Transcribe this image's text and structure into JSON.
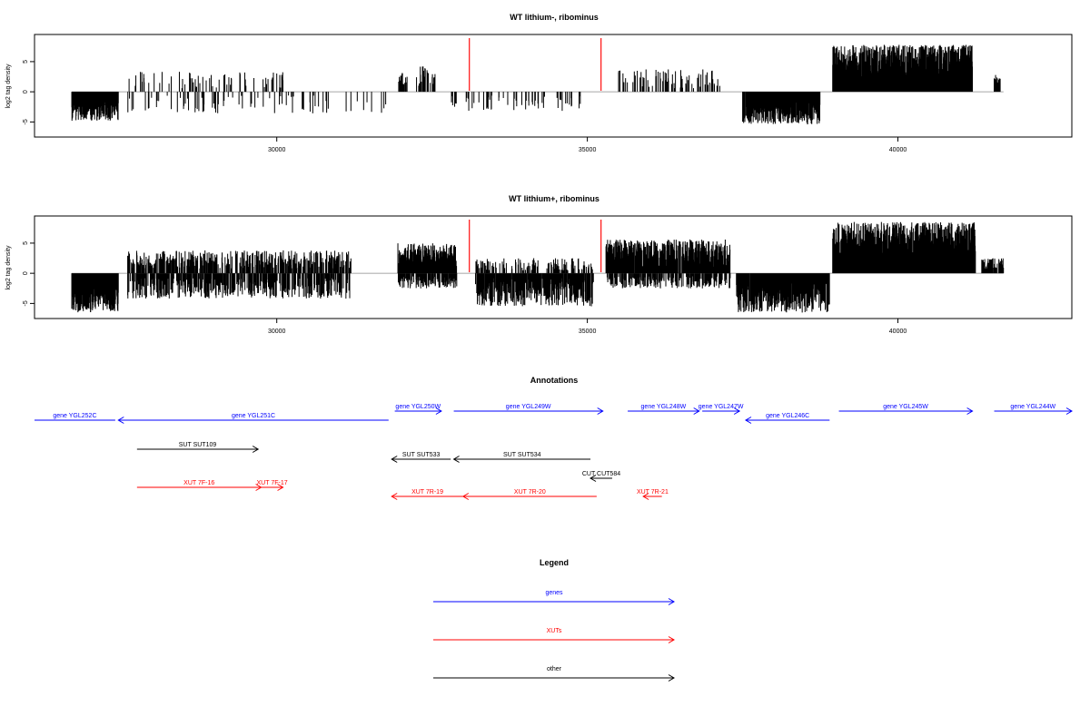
{
  "colors": {
    "axis": "#000000",
    "bars": "#000000",
    "marker": "#ff2020",
    "genes": "#0000ff",
    "xuts": "#ff0000",
    "other": "#000000"
  },
  "chart_data": [
    {
      "type": "bar",
      "title": "WT lithium-, ribominus",
      "ylabel": "log2 tag density",
      "xlim": [
        26100,
        42800
      ],
      "ylim": [
        -7.5,
        9.5
      ],
      "x_ticks": [
        30000,
        35000,
        40000
      ],
      "y_ticks": [
        -5,
        0,
        5
      ],
      "grid": false,
      "markers_x": [
        33100,
        35220
      ],
      "segments": [
        {
          "x0": 26700,
          "x1": 27450,
          "sign": -1,
          "min": 1.6,
          "max": 4.8,
          "density": 0.75
        },
        {
          "x0": 27600,
          "x1": 30100,
          "sign": 1,
          "min": 0.6,
          "max": 3.4,
          "density": 0.07
        },
        {
          "x0": 27600,
          "x1": 31800,
          "sign": -1,
          "min": 0.6,
          "max": 3.6,
          "density": 0.07
        },
        {
          "x0": 31960,
          "x1": 32100,
          "sign": 1,
          "min": 1.0,
          "max": 3.2,
          "density": 0.5
        },
        {
          "x0": 32250,
          "x1": 32550,
          "sign": 1,
          "min": 1.0,
          "max": 4.3,
          "density": 0.3
        },
        {
          "x0": 32800,
          "x1": 34900,
          "sign": -1,
          "min": 0.6,
          "max": 3.2,
          "density": 0.09
        },
        {
          "x0": 35500,
          "x1": 37150,
          "sign": 1,
          "min": 0.6,
          "max": 3.8,
          "density": 0.14
        },
        {
          "x0": 37500,
          "x1": 38750,
          "sign": -1,
          "min": 1.5,
          "max": 5.4,
          "density": 0.75
        },
        {
          "x0": 38950,
          "x1": 41200,
          "sign": 1,
          "min": 2.2,
          "max": 7.8,
          "density": 0.95
        },
        {
          "x0": 41550,
          "x1": 41650,
          "sign": 1,
          "min": 1.5,
          "max": 2.8,
          "density": 0.5
        }
      ]
    },
    {
      "type": "bar",
      "title": "WT lithium+, ribominus",
      "ylabel": "log2 tag density",
      "xlim": [
        26100,
        42800
      ],
      "ylim": [
        -7.5,
        9.5
      ],
      "x_ticks": [
        30000,
        35000,
        40000
      ],
      "y_ticks": [
        -5,
        0,
        5
      ],
      "grid": false,
      "markers_x": [
        33100,
        35220
      ],
      "segments": [
        {
          "x0": 26700,
          "x1": 27450,
          "sign": -1,
          "min": 2.5,
          "max": 6.5,
          "density": 0.9
        },
        {
          "x0": 27600,
          "x1": 31200,
          "sign": 1,
          "min": 0.8,
          "max": 3.8,
          "density": 0.35
        },
        {
          "x0": 27600,
          "x1": 31200,
          "sign": -1,
          "min": 0.8,
          "max": 4.2,
          "density": 0.35
        },
        {
          "x0": 31950,
          "x1": 32900,
          "sign": 1,
          "min": 1.2,
          "max": 5.0,
          "density": 0.7
        },
        {
          "x0": 31950,
          "x1": 32900,
          "sign": -1,
          "min": 0.5,
          "max": 2.5,
          "density": 0.4
        },
        {
          "x0": 33200,
          "x1": 35100,
          "sign": -1,
          "min": 0.8,
          "max": 5.5,
          "density": 0.55
        },
        {
          "x0": 33200,
          "x1": 35100,
          "sign": 1,
          "min": 0.5,
          "max": 2.5,
          "density": 0.2
        },
        {
          "x0": 35300,
          "x1": 37300,
          "sign": 1,
          "min": 1.0,
          "max": 5.6,
          "density": 0.75
        },
        {
          "x0": 35300,
          "x1": 37300,
          "sign": -1,
          "min": 0.5,
          "max": 2.5,
          "density": 0.3
        },
        {
          "x0": 37400,
          "x1": 38900,
          "sign": -1,
          "min": 1.5,
          "max": 6.5,
          "density": 0.8
        },
        {
          "x0": 38950,
          "x1": 41250,
          "sign": 1,
          "min": 2.5,
          "max": 8.5,
          "density": 0.95
        },
        {
          "x0": 41350,
          "x1": 41700,
          "sign": 1,
          "min": 0.8,
          "max": 2.5,
          "density": 0.4
        }
      ]
    }
  ],
  "annotations": {
    "title": "Annotations",
    "xlim": [
      26100,
      42800
    ],
    "features": [
      {
        "label": "gene YGL252C",
        "start": 26100,
        "end": 27400,
        "strand": "none",
        "row": 0,
        "type": "genes"
      },
      {
        "label": "gene YGL251C",
        "start": 27450,
        "end": 31800,
        "strand": "-",
        "row": 0,
        "type": "genes"
      },
      {
        "label": "gene YGL250W",
        "start": 31900,
        "end": 32650,
        "strand": "+",
        "row": -1,
        "type": "genes"
      },
      {
        "label": "gene YGL249W",
        "start": 32850,
        "end": 35250,
        "strand": "+",
        "row": -1,
        "type": "genes"
      },
      {
        "label": "gene YGL248W",
        "start": 35650,
        "end": 36800,
        "strand": "+",
        "row": -1,
        "type": "genes"
      },
      {
        "label": "gene YGL247W",
        "start": 36850,
        "end": 37450,
        "strand": "+",
        "row": -1,
        "type": "genes"
      },
      {
        "label": "gene YGL246C",
        "start": 37550,
        "end": 38900,
        "strand": "-",
        "row": 0,
        "type": "genes"
      },
      {
        "label": "gene YGL245W",
        "start": 39050,
        "end": 41200,
        "strand": "+",
        "row": -1,
        "type": "genes"
      },
      {
        "label": "gene YGL244W",
        "start": 41550,
        "end": 42800,
        "strand": "+",
        "row": -1,
        "type": "genes"
      },
      {
        "label": "SUT SUT109",
        "start": 27750,
        "end": 29700,
        "strand": "+",
        "row": 1,
        "type": "other"
      },
      {
        "label": "SUT SUT533",
        "start": 31850,
        "end": 32800,
        "strand": "-",
        "row": 2,
        "type": "other"
      },
      {
        "label": "SUT SUT534",
        "start": 32850,
        "end": 35050,
        "strand": "-",
        "row": 2,
        "type": "other"
      },
      {
        "label": "CUT CUT584",
        "start": 35050,
        "end": 35400,
        "strand": "-",
        "row": 3,
        "type": "other"
      },
      {
        "label": "XUT 7F-16",
        "start": 27750,
        "end": 29750,
        "strand": "+",
        "row": 4,
        "type": "xuts"
      },
      {
        "label": "XUT 7F-17",
        "start": 29750,
        "end": 30100,
        "strand": "+",
        "row": 4,
        "type": "xuts"
      },
      {
        "label": "XUT 7R-19",
        "start": 31850,
        "end": 33000,
        "strand": "-",
        "row": 5,
        "type": "xuts"
      },
      {
        "label": "XUT 7R-20",
        "start": 33000,
        "end": 35150,
        "strand": "-",
        "row": 5,
        "type": "xuts"
      },
      {
        "label": "XUT 7R-21",
        "start": 35900,
        "end": 36200,
        "strand": "-",
        "row": 5,
        "type": "xuts"
      }
    ]
  },
  "legend": {
    "title": "Legend",
    "items": [
      {
        "label": "genes",
        "type": "genes"
      },
      {
        "label": "XUTs",
        "type": "xuts"
      },
      {
        "label": "other",
        "type": "other"
      }
    ]
  }
}
